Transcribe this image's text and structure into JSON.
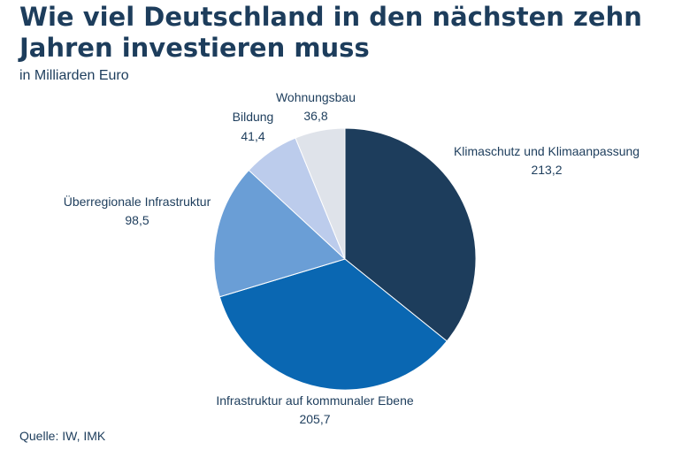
{
  "title": "Wie viel Deutschland in den nächsten zehn Jahren investieren muss",
  "subtitle": "in Milliarden Euro",
  "source": "Quelle: IW, IMK",
  "colors": {
    "text": "#1d3d5c",
    "slices": [
      "#1d3d5c",
      "#0a67b2",
      "#6a9ed6",
      "#bcccec",
      "#dfe3ea"
    ]
  },
  "chart_data": {
    "type": "pie",
    "start": "12 o'clock, clockwise",
    "slices": [
      {
        "label": "Klimaschutz und Klimaanpassung",
        "value": 213.2,
        "value_label": "213,2"
      },
      {
        "label": "Infrastruktur auf kommunaler Ebene",
        "value": 205.7,
        "value_label": "205,7"
      },
      {
        "label": "Überregionale Infrastruktur",
        "value": 98.5,
        "value_label": "98,5"
      },
      {
        "label": "Bildung",
        "value": 41.4,
        "value_label": "41,4"
      },
      {
        "label": "Wohnungsbau",
        "value": 36.8,
        "value_label": "36,8"
      }
    ]
  }
}
